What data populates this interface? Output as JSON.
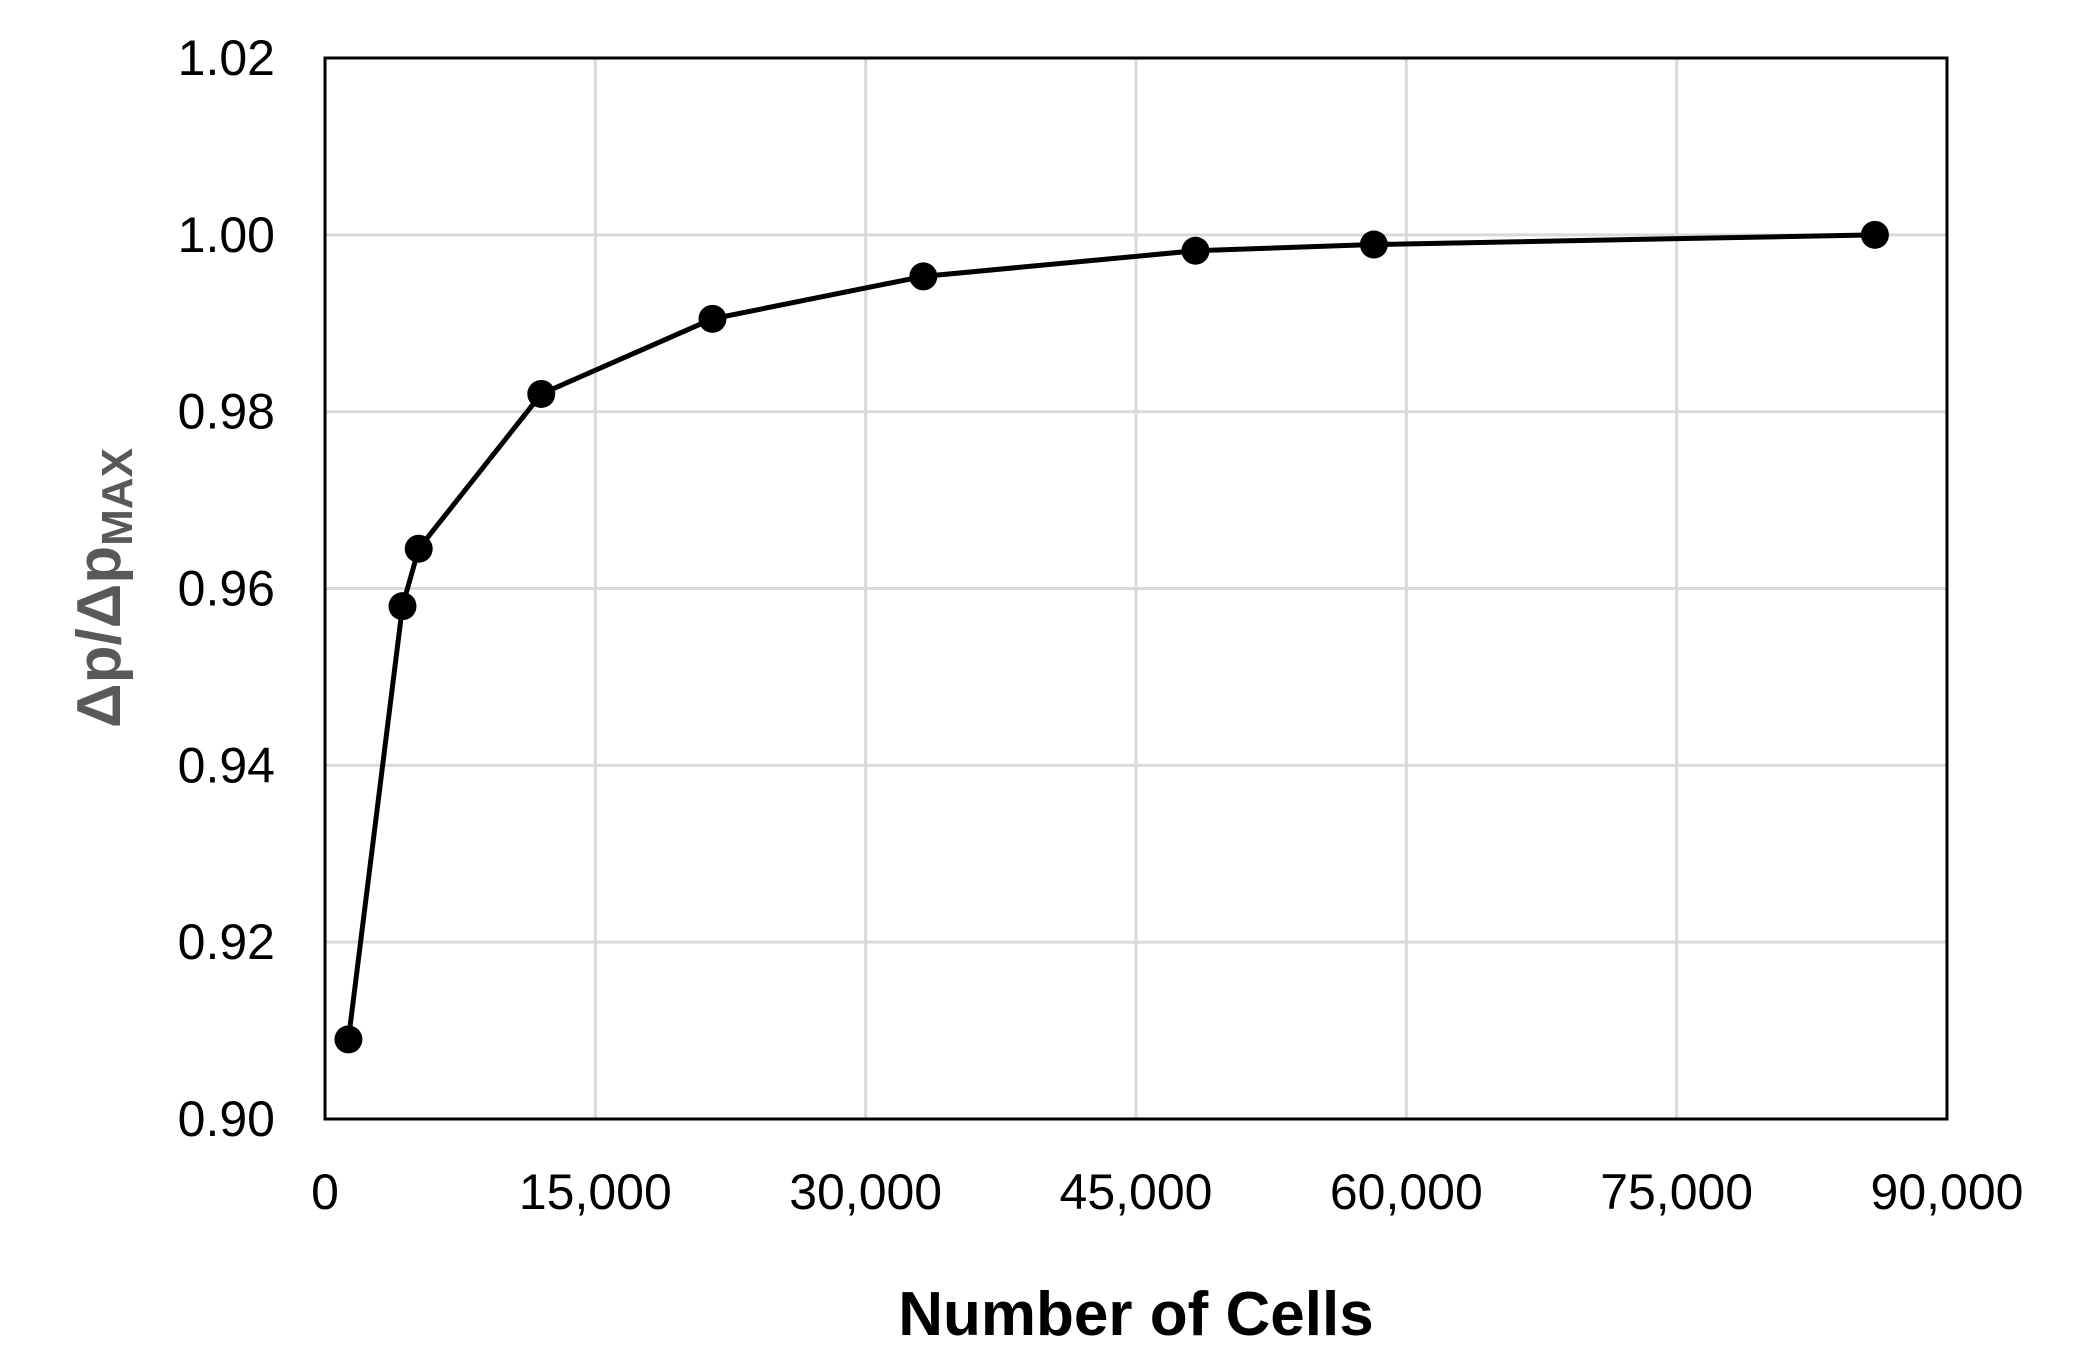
{
  "chart_data": {
    "type": "line",
    "title": "",
    "xlabel": "Number of Cells",
    "ylabel": {
      "main": "Δp/Δp",
      "subscript": "MAX"
    },
    "xlim": [
      0,
      90000
    ],
    "ylim": [
      0.9,
      1.02
    ],
    "x_ticks": [
      "0",
      "15,000",
      "30,000",
      "45,000",
      "60,000",
      "75,000",
      "90,000"
    ],
    "x_tick_values": [
      0,
      15000,
      30000,
      45000,
      60000,
      75000,
      90000
    ],
    "y_ticks": [
      "0.90",
      "0.92",
      "0.94",
      "0.96",
      "0.98",
      "1.00",
      "1.02"
    ],
    "y_tick_values": [
      0.9,
      0.92,
      0.94,
      0.96,
      0.98,
      1.0,
      1.02
    ],
    "grid": true,
    "legend": "none",
    "series": [
      {
        "color": "#000000",
        "marker": "circle",
        "x": [
          1300,
          4300,
          5200,
          12000,
          21500,
          33200,
          48300,
          58200,
          86000
        ],
        "y": [
          0.909,
          0.958,
          0.9645,
          0.982,
          0.9905,
          0.9953,
          0.9982,
          0.9989,
          1.0
        ]
      }
    ]
  }
}
